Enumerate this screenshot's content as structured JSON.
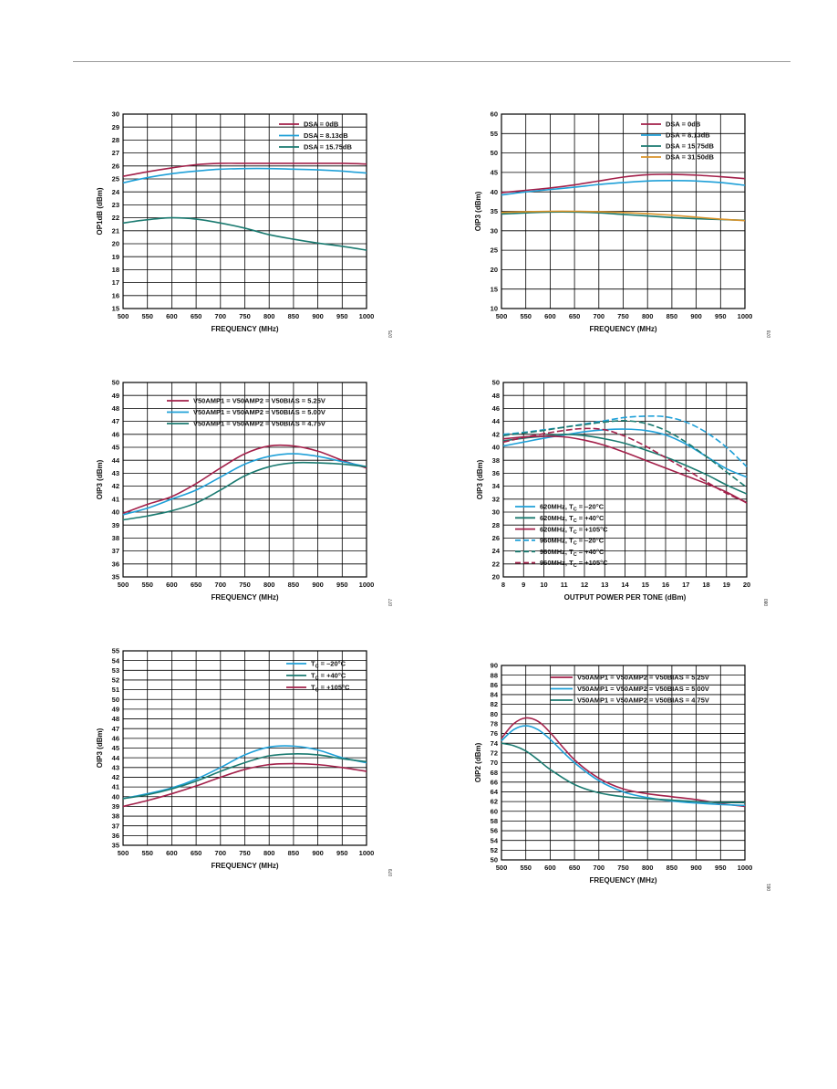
{
  "colors": {
    "maroon": "#a3204a",
    "light_blue": "#1fa0d8",
    "teal": "#1a7a70",
    "orange": "#d9932a",
    "grid": "#000000"
  },
  "chart_data": [
    {
      "type": "line",
      "xlabel": "FREQUENCY (MHz)",
      "ylabel": "OP1dB (dBm)",
      "xlim": [
        500,
        1000
      ],
      "ylim": [
        15,
        30
      ],
      "xticks": [
        500,
        550,
        600,
        650,
        700,
        750,
        800,
        850,
        900,
        950,
        1000
      ],
      "yticks": [
        15,
        16,
        17,
        18,
        19,
        20,
        21,
        22,
        23,
        24,
        25,
        26,
        27,
        28,
        29,
        30
      ],
      "legend": "top-right",
      "grid": true,
      "figure_id": "075",
      "series": [
        {
          "name": "DSA = 0dB",
          "color": "maroon",
          "dash": false,
          "x": [
            500,
            550,
            600,
            650,
            700,
            750,
            800,
            850,
            900,
            950,
            1000
          ],
          "y": [
            25.2,
            25.55,
            25.85,
            26.1,
            26.2,
            26.2,
            26.2,
            26.2,
            26.2,
            26.2,
            26.15
          ]
        },
        {
          "name": "DSA = 8.13dB",
          "color": "light_blue",
          "dash": false,
          "x": [
            500,
            550,
            600,
            650,
            700,
            750,
            800,
            850,
            900,
            950,
            1000
          ],
          "y": [
            24.7,
            25.1,
            25.4,
            25.6,
            25.75,
            25.8,
            25.8,
            25.75,
            25.7,
            25.6,
            25.45
          ]
        },
        {
          "name": "DSA = 15.75dB",
          "color": "teal",
          "dash": false,
          "x": [
            500,
            550,
            600,
            650,
            700,
            750,
            800,
            850,
            900,
            950,
            1000
          ],
          "y": [
            21.6,
            21.85,
            22.0,
            21.9,
            21.6,
            21.2,
            20.7,
            20.35,
            20.05,
            19.8,
            19.5
          ]
        }
      ]
    },
    {
      "type": "line",
      "xlabel": "FREQUENCY (MHz)",
      "ylabel": "OIP3 (dBm)",
      "xlim": [
        500,
        1000
      ],
      "ylim": [
        10,
        60
      ],
      "xticks": [
        500,
        550,
        600,
        650,
        700,
        750,
        800,
        850,
        900,
        950,
        1000
      ],
      "yticks": [
        10,
        15,
        20,
        25,
        30,
        35,
        40,
        45,
        50,
        55,
        60
      ],
      "legend": "top-right",
      "grid": true,
      "figure_id": "078",
      "series": [
        {
          "name": "DSA = 0dB",
          "color": "maroon",
          "dash": false,
          "x": [
            500,
            550,
            600,
            650,
            700,
            750,
            800,
            850,
            900,
            950,
            1000
          ],
          "y": [
            39.8,
            40.4,
            41.0,
            41.8,
            42.8,
            43.8,
            44.4,
            44.5,
            44.3,
            43.9,
            43.4
          ]
        },
        {
          "name": "DSA = 8.13dB",
          "color": "light_blue",
          "dash": false,
          "x": [
            500,
            550,
            600,
            650,
            700,
            750,
            800,
            850,
            900,
            950,
            1000
          ],
          "y": [
            39.2,
            40.0,
            40.6,
            41.2,
            41.9,
            42.4,
            42.8,
            42.9,
            42.8,
            42.4,
            41.7
          ]
        },
        {
          "name": "DSA = 15.75dB",
          "color": "teal",
          "dash": false,
          "x": [
            500,
            550,
            600,
            650,
            700,
            750,
            800,
            850,
            900,
            950,
            1000
          ],
          "y": [
            34.3,
            34.6,
            34.8,
            34.8,
            34.6,
            34.2,
            33.8,
            33.4,
            33.1,
            32.9,
            32.7
          ]
        },
        {
          "name": "DSA = 31.50dB",
          "color": "orange",
          "dash": false,
          "x": [
            500,
            550,
            600,
            650,
            700,
            750,
            800,
            850,
            900,
            950,
            1000
          ],
          "y": [
            34.7,
            34.9,
            35.0,
            35.0,
            34.9,
            34.7,
            34.4,
            34.0,
            33.5,
            33.0,
            32.6
          ]
        }
      ]
    },
    {
      "type": "line",
      "xlabel": "FREQUENCY (MHz)",
      "ylabel": "OIP3 (dBm)",
      "xlim": [
        500,
        1000
      ],
      "ylim": [
        35,
        50
      ],
      "xticks": [
        500,
        550,
        600,
        650,
        700,
        750,
        800,
        850,
        900,
        950,
        1000
      ],
      "yticks": [
        35,
        36,
        37,
        38,
        39,
        40,
        41,
        42,
        43,
        44,
        45,
        46,
        47,
        48,
        49,
        50
      ],
      "legend": "top-left",
      "grid": true,
      "figure_id": "077",
      "series": [
        {
          "name": "V50AMP1 = V50AMP2 = V50BIAS = 5.25V",
          "color": "maroon",
          "dash": false,
          "x": [
            500,
            550,
            600,
            650,
            700,
            750,
            800,
            850,
            900,
            950,
            1000
          ],
          "y": [
            39.9,
            40.6,
            41.2,
            42.2,
            43.4,
            44.5,
            45.1,
            45.1,
            44.7,
            44.0,
            43.4
          ]
        },
        {
          "name": "V50AMP1 = V50AMP2 = V50BIAS = 5.00V",
          "color": "light_blue",
          "dash": false,
          "x": [
            500,
            550,
            600,
            650,
            700,
            750,
            800,
            850,
            900,
            950,
            1000
          ],
          "y": [
            39.8,
            40.3,
            41.0,
            41.7,
            42.7,
            43.7,
            44.3,
            44.5,
            44.3,
            43.9,
            43.5
          ]
        },
        {
          "name": "V50AMP1 = V50AMP2 = V50BIAS = 4.75V",
          "color": "teal",
          "dash": false,
          "x": [
            500,
            550,
            600,
            650,
            700,
            750,
            800,
            850,
            900,
            950,
            1000
          ],
          "y": [
            39.4,
            39.7,
            40.1,
            40.7,
            41.7,
            42.8,
            43.5,
            43.8,
            43.8,
            43.7,
            43.5
          ]
        }
      ]
    },
    {
      "type": "line",
      "xlabel": "OUTPUT POWER PER TONE (dBm)",
      "ylabel": "OIP3 (dBm)",
      "xlim": [
        8,
        20
      ],
      "ylim": [
        20,
        50
      ],
      "xticks": [
        8,
        9,
        10,
        11,
        12,
        13,
        14,
        15,
        16,
        17,
        18,
        19,
        20
      ],
      "yticks": [
        20,
        22,
        24,
        26,
        28,
        30,
        32,
        34,
        36,
        38,
        40,
        42,
        44,
        46,
        48,
        50
      ],
      "legend": "bottom-left",
      "grid": true,
      "figure_id": "080",
      "series": [
        {
          "name": "620MHz, TC = –20°C",
          "name_main": "620MHz, T",
          "name_sub": "C",
          "name_tail": " = –20°C",
          "color": "light_blue",
          "dash": false,
          "x": [
            8,
            9,
            10,
            11,
            12,
            13,
            14,
            15,
            16,
            17,
            18,
            19,
            20
          ],
          "y": [
            40.2,
            40.8,
            41.4,
            41.9,
            42.4,
            42.7,
            42.8,
            42.6,
            41.9,
            40.5,
            38.6,
            36.7,
            35.4
          ]
        },
        {
          "name": "620MHz, TC = +40°C",
          "name_main": "620MHz, T",
          "name_sub": "C",
          "name_tail": " = +40°C",
          "color": "teal",
          "dash": false,
          "x": [
            8,
            9,
            10,
            11,
            12,
            13,
            14,
            15,
            16,
            17,
            18,
            19,
            20
          ],
          "y": [
            41.0,
            41.4,
            41.7,
            42.0,
            41.8,
            41.3,
            40.6,
            39.6,
            38.5,
            37.2,
            35.8,
            34.2,
            32.8
          ]
        },
        {
          "name": "620MHz, TC = +105°C",
          "name_main": "620MHz, T",
          "name_sub": "C",
          "name_tail": " = +105°C",
          "color": "maroon",
          "dash": false,
          "x": [
            8,
            9,
            10,
            11,
            12,
            13,
            14,
            15,
            16,
            17,
            18,
            19,
            20
          ],
          "y": [
            41.3,
            41.6,
            41.7,
            41.6,
            41.1,
            40.3,
            39.2,
            38.0,
            36.8,
            35.6,
            34.4,
            33.1,
            31.4
          ]
        },
        {
          "name": "960MHz, TC = –20°C",
          "name_main": "960MHz, T",
          "name_sub": "C",
          "name_tail": " = –20°C",
          "color": "light_blue",
          "dash": true,
          "x": [
            8,
            9,
            10,
            11,
            12,
            13,
            14,
            15,
            16,
            17,
            18,
            19,
            20
          ],
          "y": [
            42.0,
            42.3,
            42.7,
            43.1,
            43.6,
            44.1,
            44.6,
            44.8,
            44.7,
            43.9,
            42.3,
            40.0,
            37.0
          ]
        },
        {
          "name": "960MHz, TC = +40°C",
          "name_main": "960MHz, T",
          "name_sub": "C",
          "name_tail": " = +40°C",
          "color": "teal",
          "dash": true,
          "x": [
            8,
            9,
            10,
            11,
            12,
            13,
            14,
            15,
            16,
            17,
            18,
            19,
            20
          ],
          "y": [
            41.8,
            42.2,
            42.6,
            43.1,
            43.5,
            43.9,
            44.1,
            43.7,
            42.6,
            40.8,
            38.6,
            36.2,
            33.8
          ]
        },
        {
          "name": "960MHz, TC = +105°C",
          "name_main": "960MHz, T",
          "name_sub": "C",
          "name_tail": " = +105°C",
          "color": "maroon",
          "dash": true,
          "x": [
            8,
            9,
            10,
            11,
            12,
            13,
            14,
            15,
            16,
            17,
            18,
            19,
            20
          ],
          "y": [
            40.8,
            41.5,
            42.1,
            42.6,
            42.9,
            42.7,
            41.7,
            40.2,
            38.4,
            36.6,
            34.7,
            32.9,
            31.5
          ]
        }
      ]
    },
    {
      "type": "line",
      "xlabel": "FREQUENCY (MHz)",
      "ylabel": "OIP3 (dBm)",
      "xlim": [
        500,
        1000
      ],
      "ylim": [
        35,
        55
      ],
      "xticks": [
        500,
        550,
        600,
        650,
        700,
        750,
        800,
        850,
        900,
        950,
        1000
      ],
      "yticks": [
        35,
        36,
        37,
        38,
        39,
        40,
        41,
        42,
        43,
        44,
        45,
        46,
        47,
        48,
        49,
        50,
        51,
        52,
        53,
        54,
        55
      ],
      "legend": "top-right",
      "grid": true,
      "figure_id": "079",
      "series": [
        {
          "name": "TC = –20°C",
          "name_main": "T",
          "name_sub": "C",
          "name_tail": " = –20°C",
          "color": "light_blue",
          "dash": false,
          "x": [
            500,
            550,
            600,
            650,
            700,
            750,
            800,
            850,
            900,
            950,
            1000
          ],
          "y": [
            39.8,
            40.3,
            40.9,
            41.8,
            43.0,
            44.3,
            45.1,
            45.2,
            44.8,
            44.0,
            43.5
          ]
        },
        {
          "name": "TC = +40°C",
          "name_main": "T",
          "name_sub": "C",
          "name_tail": " = +40°C",
          "color": "teal",
          "dash": false,
          "x": [
            500,
            550,
            600,
            650,
            700,
            750,
            800,
            850,
            900,
            950,
            1000
          ],
          "y": [
            39.8,
            40.2,
            40.8,
            41.6,
            42.6,
            43.5,
            44.2,
            44.4,
            44.3,
            43.9,
            43.6
          ]
        },
        {
          "name": "TC = +105°C",
          "name_main": "T",
          "name_sub": "C",
          "name_tail": " = +105°C",
          "color": "maroon",
          "dash": false,
          "x": [
            500,
            550,
            600,
            650,
            700,
            750,
            800,
            850,
            900,
            950,
            1000
          ],
          "y": [
            39.0,
            39.6,
            40.3,
            41.1,
            42.0,
            42.8,
            43.3,
            43.4,
            43.3,
            43.0,
            42.6
          ]
        }
      ]
    },
    {
      "type": "line",
      "xlabel": "FREQUENCY (MHz)",
      "ylabel": "OIP2 (dBm)",
      "xlim": [
        500,
        1000
      ],
      "ylim": [
        50,
        90
      ],
      "xticks": [
        500,
        550,
        600,
        650,
        700,
        750,
        800,
        850,
        900,
        950,
        1000
      ],
      "yticks": [
        50,
        52,
        54,
        56,
        58,
        60,
        62,
        64,
        66,
        68,
        70,
        72,
        74,
        76,
        78,
        80,
        82,
        84,
        86,
        88,
        90
      ],
      "legend": "top-right",
      "grid": true,
      "figure_id": "081",
      "series": [
        {
          "name": "V50AMP1 = V50AMP2 = V50BIAS = 5.25V",
          "color": "maroon",
          "dash": false,
          "x": [
            500,
            525,
            550,
            575,
            600,
            650,
            700,
            750,
            800,
            850,
            900,
            950,
            1000
          ],
          "y": [
            75.0,
            78.0,
            79.2,
            78.5,
            76.2,
            70.6,
            66.8,
            64.6,
            63.6,
            63.0,
            62.4,
            61.6,
            61.0
          ]
        },
        {
          "name": "V50AMP1 = V50AMP2 = V50BIAS = 5.00V",
          "color": "light_blue",
          "dash": false,
          "x": [
            500,
            525,
            550,
            575,
            600,
            650,
            700,
            750,
            800,
            850,
            900,
            950,
            1000
          ],
          "y": [
            74.5,
            76.8,
            77.6,
            76.8,
            74.8,
            70.0,
            66.3,
            64.0,
            62.8,
            62.1,
            61.7,
            61.4,
            61.2
          ]
        },
        {
          "name": "V50AMP1 = V50AMP2 = V50BIAS = 4.75V",
          "color": "teal",
          "dash": false,
          "x": [
            500,
            525,
            550,
            575,
            600,
            650,
            700,
            750,
            800,
            850,
            900,
            950,
            1000
          ],
          "y": [
            74.0,
            73.5,
            72.4,
            70.6,
            68.6,
            65.5,
            63.8,
            63.0,
            62.6,
            62.3,
            62.0,
            61.8,
            61.8
          ]
        }
      ]
    }
  ]
}
